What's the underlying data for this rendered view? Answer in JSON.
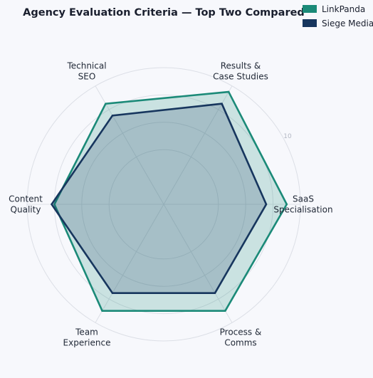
{
  "chart_data": {
    "type": "radar",
    "title": "Agency Evaluation Criteria — Top Two Compared",
    "axes": [
      [
        "Results &",
        "Case Studies"
      ],
      [
        "SaaS",
        "Specialisation"
      ],
      [
        "Process &",
        "Comms"
      ],
      [
        "Team",
        "Experience"
      ],
      [
        "Content",
        "Quality"
      ],
      [
        "Technical",
        "SEO"
      ]
    ],
    "rmax": 10,
    "ticks": [
      4,
      6,
      8,
      10
    ],
    "tick_labels": [
      "",
      "",
      "",
      "10"
    ],
    "series": [
      {
        "name": "LinkPanda",
        "color": "#1b8a78",
        "fill": "#1b8a78",
        "values": [
          9.5,
          9.0,
          9.0,
          9.0,
          8.0,
          8.5
        ]
      },
      {
        "name": "Siege Media",
        "color": "#17365e",
        "fill": "#17365e",
        "values": [
          8.5,
          7.5,
          7.5,
          7.5,
          8.2,
          7.5
        ]
      }
    ],
    "legend_position": "top-right",
    "grid": true
  }
}
